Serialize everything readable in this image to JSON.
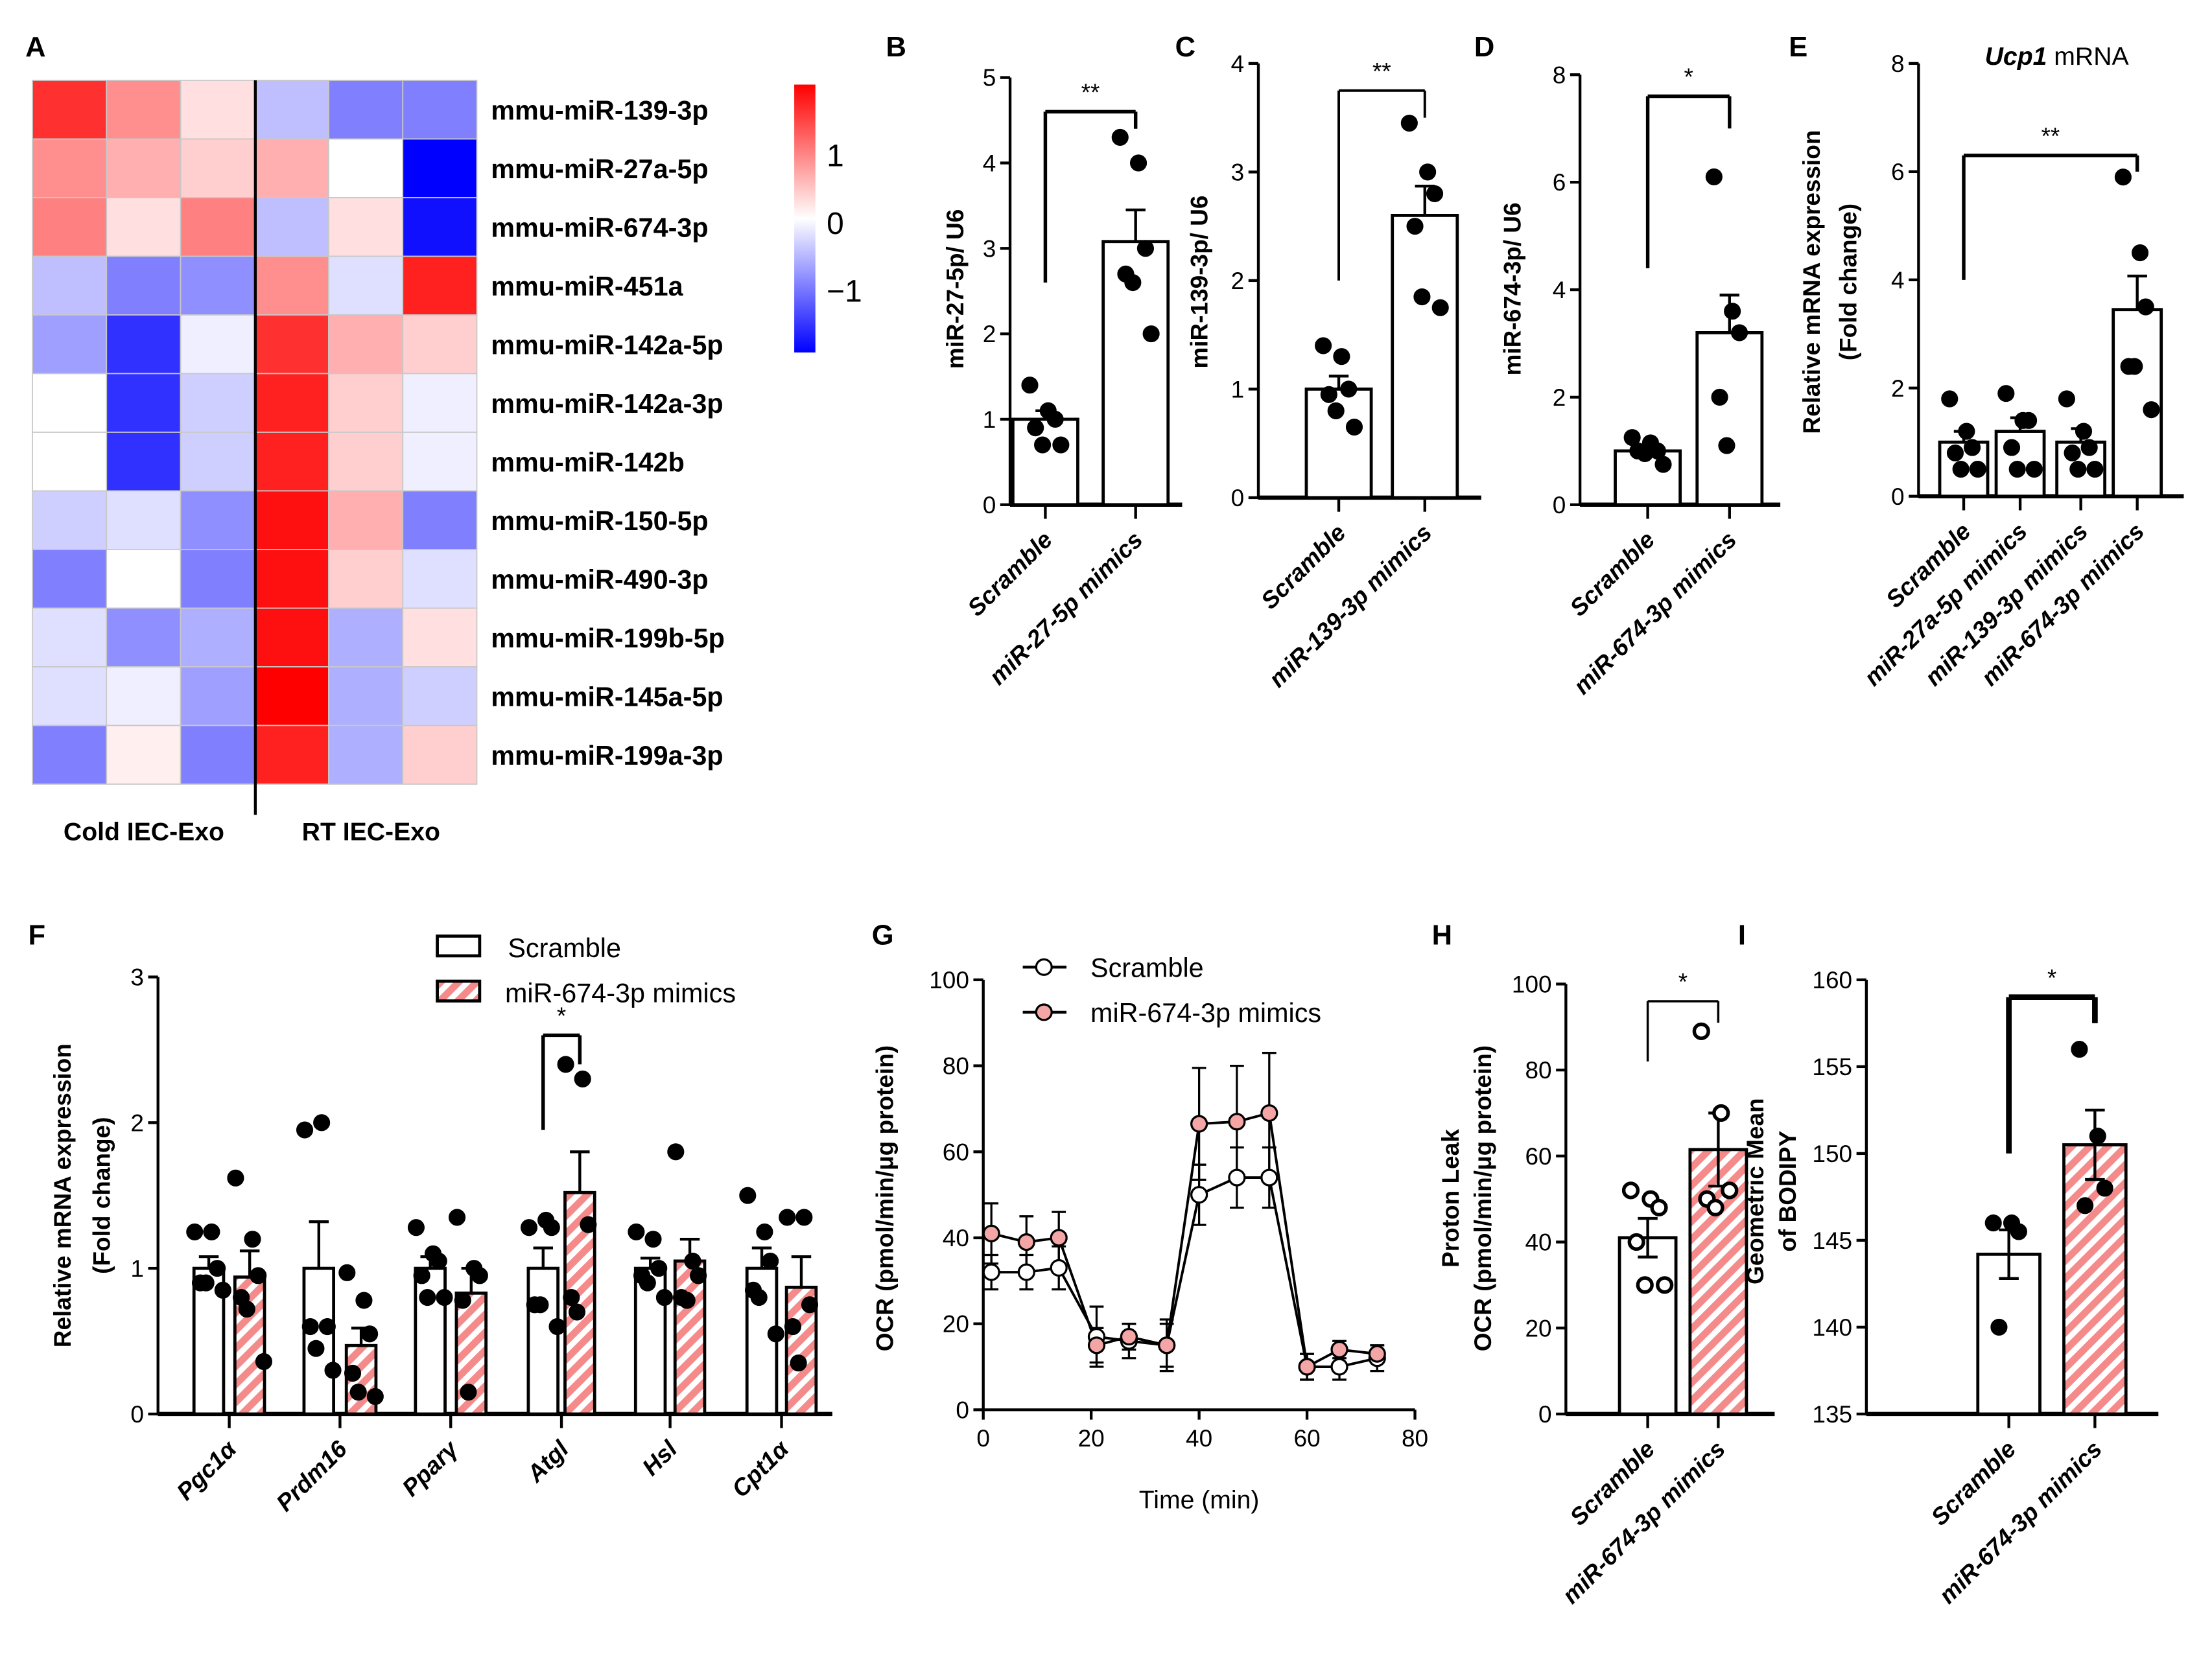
{
  "panel_labels": [
    "A",
    "B",
    "C",
    "D",
    "E",
    "F",
    "G",
    "H",
    "I"
  ],
  "colors": {
    "red": "#ff0000",
    "blue": "#0000ff",
    "pink_bar": "#f58a8a",
    "pink_point": "#f4a6a6",
    "black": "#000000"
  },
  "chart_data": [
    {
      "type": "heatmap",
      "rows": [
        "mmu-miR-139-3p",
        "mmu-miR-27a-5p",
        "mmu-miR-674-3p",
        "mmu-miR-451a",
        "mmu-miR-142a-5p",
        "mmu-miR-142a-3p",
        "mmu-miR-142b",
        "mmu-miR-150-5p",
        "mmu-miR-490-3p",
        "mmu-miR-199b-5p",
        "mmu-miR-145a-5p",
        "mmu-miR-199a-3p"
      ],
      "groups": [
        "Cold  IEC-Exo",
        "RT IEC-Exo"
      ],
      "values": [
        [
          1.3,
          0.7,
          0.2,
          -0.4,
          -0.8,
          -0.8
        ],
        [
          0.7,
          0.5,
          0.3,
          0.5,
          0.0,
          -1.6
        ],
        [
          0.8,
          0.2,
          0.8,
          -0.4,
          0.2,
          -1.5
        ],
        [
          -0.4,
          -0.8,
          -0.7,
          0.7,
          -0.2,
          1.4
        ],
        [
          -0.6,
          -1.3,
          -0.1,
          1.3,
          0.5,
          0.3
        ],
        [
          0.0,
          -1.3,
          -0.3,
          1.4,
          0.3,
          -0.1
        ],
        [
          0.0,
          -1.3,
          -0.3,
          1.4,
          0.3,
          -0.1
        ],
        [
          -0.3,
          -0.2,
          -0.7,
          1.5,
          0.5,
          -0.8
        ],
        [
          -0.8,
          0.0,
          -0.8,
          1.5,
          0.3,
          -0.2
        ],
        [
          -0.2,
          -0.7,
          -0.5,
          1.5,
          -0.5,
          0.2
        ],
        [
          -0.2,
          -0.1,
          -0.6,
          1.6,
          -0.5,
          -0.3
        ],
        [
          -0.8,
          0.1,
          -0.8,
          1.4,
          -0.5,
          0.3
        ]
      ],
      "colorbar_ticks": [
        "1",
        "0",
        "−1"
      ],
      "range": [
        -1.6,
        1.6
      ]
    },
    {
      "type": "bar",
      "ylabel": [
        "miR-27-5p/ U6"
      ],
      "ylim": [
        0,
        5
      ],
      "yticks": [
        0,
        1,
        2,
        3,
        4,
        5
      ],
      "categories": [
        "Scramble",
        "miR-27-5p mimics"
      ],
      "means": [
        1.0,
        3.08
      ],
      "sem": [
        0.1,
        0.37
      ],
      "points": [
        [
          1.4,
          1.1,
          1.0,
          0.9,
          0.7,
          0.7
        ],
        [
          4.3,
          4.0,
          3.0,
          2.7,
          2.6,
          2.0
        ]
      ],
      "sig": {
        "label": "**",
        "from": 0,
        "to": 1,
        "top": 4.6,
        "left_bottom": 2.6,
        "right_bottom": 4.4
      }
    },
    {
      "type": "bar",
      "ylabel": [
        "miR-139-3p/ U6"
      ],
      "ylim": [
        0,
        4
      ],
      "yticks": [
        0,
        1,
        2,
        3,
        4
      ],
      "categories": [
        "Scramble",
        "miR-139-3p mimics"
      ],
      "means": [
        1.0,
        2.6
      ],
      "sem": [
        0.12,
        0.27
      ],
      "points": [
        [
          1.4,
          1.3,
          1.0,
          0.95,
          0.8,
          0.65
        ],
        [
          3.45,
          3.0,
          2.8,
          2.5,
          1.85,
          1.75
        ]
      ],
      "sig": {
        "label": "**",
        "from": 0,
        "to": 1,
        "top": 3.75,
        "left_bottom": 2.0,
        "right_bottom": 3.5
      }
    },
    {
      "type": "bar",
      "ylabel": [
        "miR-674-3p/ U6"
      ],
      "ylim": [
        0,
        8
      ],
      "yticks": [
        0,
        2,
        4,
        6,
        8
      ],
      "categories": [
        "Scramble",
        "miR-674-3p mimics"
      ],
      "means": [
        1.0,
        3.2
      ],
      "sem": [
        0.07,
        0.7
      ],
      "points": [
        [
          1.25,
          1.15,
          1.0,
          1.0,
          0.95,
          0.75
        ],
        [
          6.1,
          3.6,
          3.2,
          2.0,
          1.1
        ]
      ],
      "sig": {
        "label": "*",
        "from": 0,
        "to": 1,
        "top": 7.6,
        "left_bottom": 4.4,
        "right_bottom": 7.0
      }
    },
    {
      "type": "bar",
      "title_italic": "Ucp1",
      "title_rest": " mRNA",
      "ylabel": [
        "Relative mRNA expression",
        "(Fold change)"
      ],
      "ylim": [
        0,
        8
      ],
      "yticks": [
        0,
        2,
        4,
        6,
        8
      ],
      "categories": [
        "Scramble",
        "miR-27a-5p mimics",
        "miR-139-3p mimics",
        "miR-674-3p mimics"
      ],
      "means": [
        1.0,
        1.2,
        1.0,
        3.45
      ],
      "sem": [
        0.2,
        0.25,
        0.25,
        0.62
      ],
      "points": [
        [
          1.8,
          1.2,
          0.9,
          0.8,
          0.5,
          0.5
        ],
        [
          1.9,
          1.4,
          1.4,
          0.9,
          0.5,
          0.5
        ],
        [
          1.8,
          1.2,
          0.9,
          0.8,
          0.5,
          0.5
        ],
        [
          5.9,
          4.5,
          3.5,
          2.4,
          2.4,
          1.6
        ]
      ],
      "sig": {
        "label": "**",
        "from": 0,
        "to": 3,
        "top": 6.3,
        "left_bottom": 4.0,
        "right_bottom": 6.0
      }
    },
    {
      "type": "bar",
      "grouped": true,
      "ylabel": [
        "Relative mRNA expression",
        "(Fold change)"
      ],
      "ylim": [
        0,
        3
      ],
      "yticks": [
        0,
        1,
        2,
        3
      ],
      "categories": [
        "Pgc1α",
        "Prdm16",
        "Pparγ",
        "Atgl",
        "Hsl",
        "Cpt1α"
      ],
      "legend": [
        "Scramble",
        "miR-674-3p mimics"
      ],
      "legend_position": "top-right",
      "series": [
        {
          "name": "Scramble",
          "means": [
            1,
            1,
            1,
            1,
            1,
            1
          ],
          "sem": [
            0.08,
            0.32,
            0.08,
            0.14,
            0.07,
            0.14
          ],
          "points": [
            [
              1.25,
              1.25,
              1.0,
              0.9,
              0.9,
              0.85
            ],
            [
              1.95,
              2.0,
              0.6,
              0.6,
              0.45,
              0.3
            ],
            [
              1.28,
              1.1,
              1.05,
              0.95,
              0.8,
              0.8
            ],
            [
              1.28,
              1.33,
              1.28,
              0.75,
              0.75,
              0.6
            ],
            [
              1.25,
              1.2,
              1.0,
              0.95,
              0.9,
              0.8
            ],
            [
              1.5,
              1.25,
              1.05,
              0.85,
              0.8,
              0.55
            ]
          ]
        },
        {
          "name": "miR-674-3p mimics",
          "means": [
            0.94,
            0.47,
            0.83,
            1.52,
            1.05,
            0.87
          ],
          "sem": [
            0.18,
            0.12,
            0.17,
            0.28,
            0.15,
            0.21
          ],
          "points": [
            [
              1.62,
              1.2,
              0.95,
              0.8,
              0.72,
              0.36
            ],
            [
              0.97,
              0.78,
              0.55,
              0.28,
              0.15,
              0.12
            ],
            [
              1.35,
              1.0,
              0.95,
              0.78,
              0.15
            ],
            [
              2.4,
              2.3,
              1.3,
              0.8,
              0.7
            ],
            [
              1.8,
              1.05,
              0.95,
              0.8,
              0.78
            ],
            [
              1.35,
              1.35,
              0.75,
              0.6,
              0.35
            ]
          ]
        }
      ],
      "sig": {
        "label": "*",
        "category": 3,
        "top": 2.6,
        "left_bottom": 1.95,
        "right_bottom": 2.4
      }
    },
    {
      "type": "line",
      "xlabel": "Time (min)",
      "ylabel": [
        "OCR (pmol/min/μg protein)"
      ],
      "xlim": [
        0,
        80
      ],
      "ylim": [
        0,
        100
      ],
      "xticks": [
        0,
        20,
        40,
        60,
        80
      ],
      "yticks": [
        0,
        20,
        40,
        60,
        80,
        100
      ],
      "x": [
        1.5,
        8,
        14,
        21,
        27,
        34,
        40,
        47,
        53,
        60,
        66,
        73
      ],
      "legend_position": "top-left",
      "series": [
        {
          "name": "Scramble",
          "y": [
            32,
            32,
            33,
            17,
            16,
            15,
            50,
            54,
            54,
            10,
            10,
            12
          ],
          "sem": [
            4,
            4,
            5,
            7,
            4,
            5,
            7,
            7,
            7,
            3,
            3,
            3
          ]
        },
        {
          "name": "miR-674-3p mimics",
          "y": [
            41,
            39,
            40,
            15,
            17,
            15,
            66.5,
            67,
            69,
            10,
            14,
            13
          ],
          "sem": [
            7,
            6,
            6,
            4,
            3,
            6,
            13,
            13,
            14,
            3,
            2,
            2
          ]
        }
      ]
    },
    {
      "type": "bar",
      "ylabel": [
        "Proton Leak",
        "OCR (pmol/min/μg protein)"
      ],
      "ylim": [
        0,
        100
      ],
      "yticks": [
        0,
        20,
        40,
        60,
        80,
        100
      ],
      "categories": [
        "Scramble",
        "miR-674-3p mimics"
      ],
      "means": [
        41,
        61.5
      ],
      "sem": [
        4.5,
        8.5
      ],
      "open_points": true,
      "points": [
        [
          52,
          50,
          48,
          40,
          30,
          30
        ],
        [
          89,
          70,
          52,
          50,
          48
        ]
      ],
      "sig": {
        "label": "*",
        "from": 0,
        "to": 1,
        "top": 96,
        "left_bottom": 82,
        "right_bottom": 91
      }
    },
    {
      "type": "bar",
      "ylabel": [
        "Geometric Mean",
        "of BODIPY"
      ],
      "ylim": [
        135,
        160
      ],
      "yticks": [
        135,
        140,
        145,
        150,
        155,
        160
      ],
      "categories": [
        "Scramble",
        "miR-674-3p mimics"
      ],
      "means": [
        144.2,
        150.5
      ],
      "sem": [
        1.4,
        2.0
      ],
      "points": [
        [
          146,
          146,
          145.5,
          140
        ],
        [
          156,
          151,
          148,
          147
        ]
      ],
      "sig": {
        "label": "*",
        "from": 0,
        "to": 1,
        "top": 159,
        "left_bottom": 150,
        "right_bottom": 157.5
      }
    }
  ]
}
